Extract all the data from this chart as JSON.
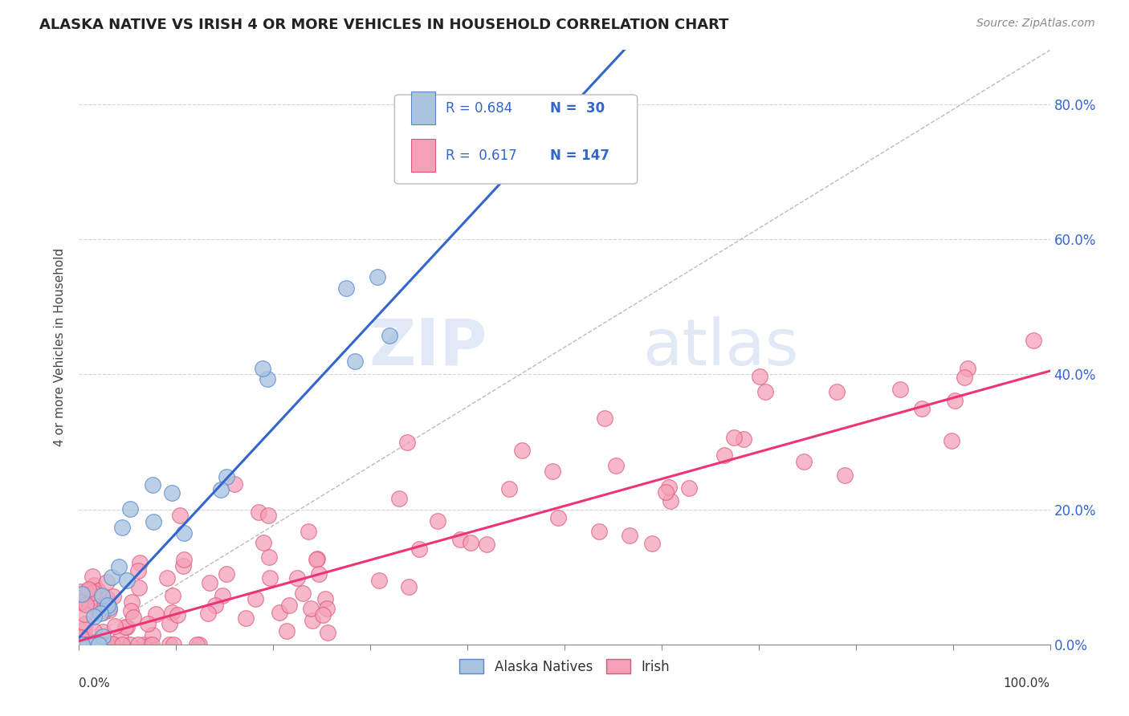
{
  "title": "ALASKA NATIVE VS IRISH 4 OR MORE VEHICLES IN HOUSEHOLD CORRELATION CHART",
  "source": "Source: ZipAtlas.com",
  "ylabel": "4 or more Vehicles in Household",
  "xlim": [
    0,
    1.0
  ],
  "ylim": [
    0,
    0.88
  ],
  "yticks": [
    0.0,
    0.2,
    0.4,
    0.6,
    0.8
  ],
  "ytick_labels_right": [
    "0.0%",
    "20.0%",
    "40.0%",
    "60.0%",
    "80.0%"
  ],
  "alaska_color": "#aac4e0",
  "irish_color": "#f5a0b8",
  "alaska_edge": "#5588cc",
  "irish_edge": "#dd5577",
  "trendline_alaska_color": "#3366cc",
  "trendline_irish_color": "#ee3377",
  "legend_r_alaska": "R = 0.684",
  "legend_n_alaska": "N =  30",
  "legend_r_irish": "R =  0.617",
  "legend_n_irish": "N = 147",
  "watermark_zip": "ZIP",
  "watermark_atlas": "atlas",
  "alaska_slope": 1.55,
  "alaska_intercept": 0.01,
  "irish_slope": 0.4,
  "irish_intercept": 0.005
}
